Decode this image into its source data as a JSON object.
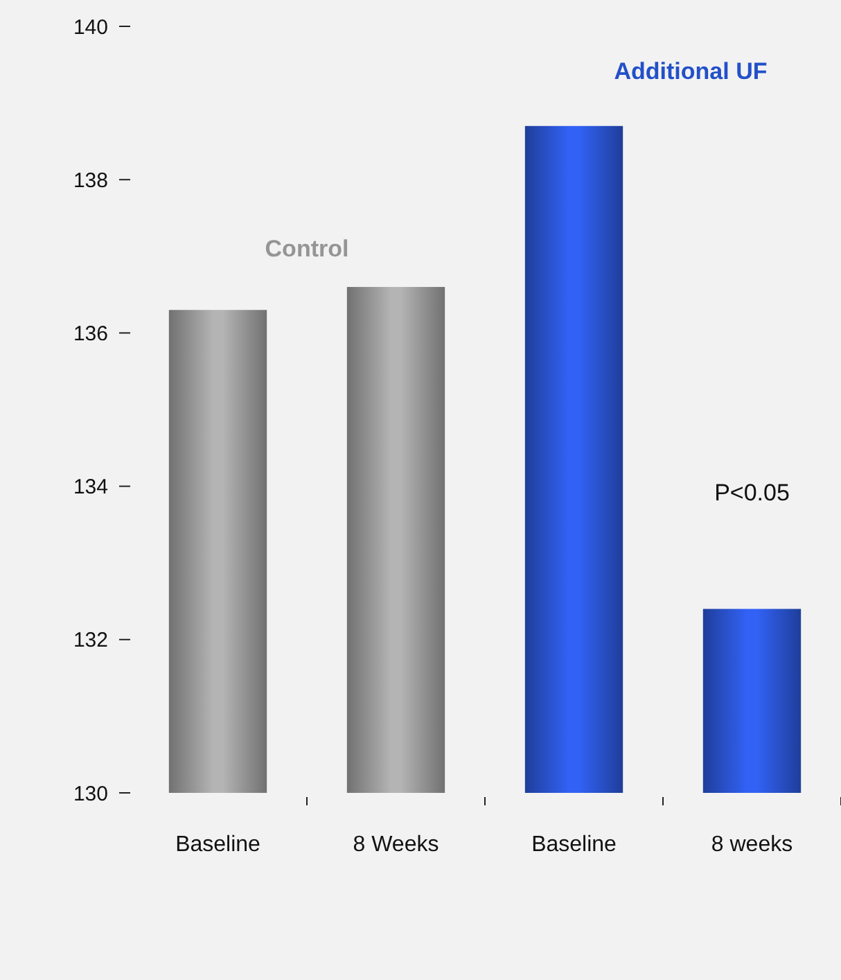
{
  "chart_data": {
    "type": "bar",
    "categories": [
      "Baseline",
      "8 Weeks",
      "Baseline",
      "8 weeks"
    ],
    "values": [
      136.3,
      136.6,
      138.7,
      132.4
    ],
    "colors": [
      "#b4b4b4",
      "#b4b4b4",
      "#3262f5",
      "#3262f5"
    ],
    "ylim": [
      130,
      140
    ],
    "yticks": [
      130,
      132,
      134,
      136,
      138,
      140
    ],
    "annotations": [
      "Control",
      "Additional UF",
      "P<0.05"
    ]
  }
}
